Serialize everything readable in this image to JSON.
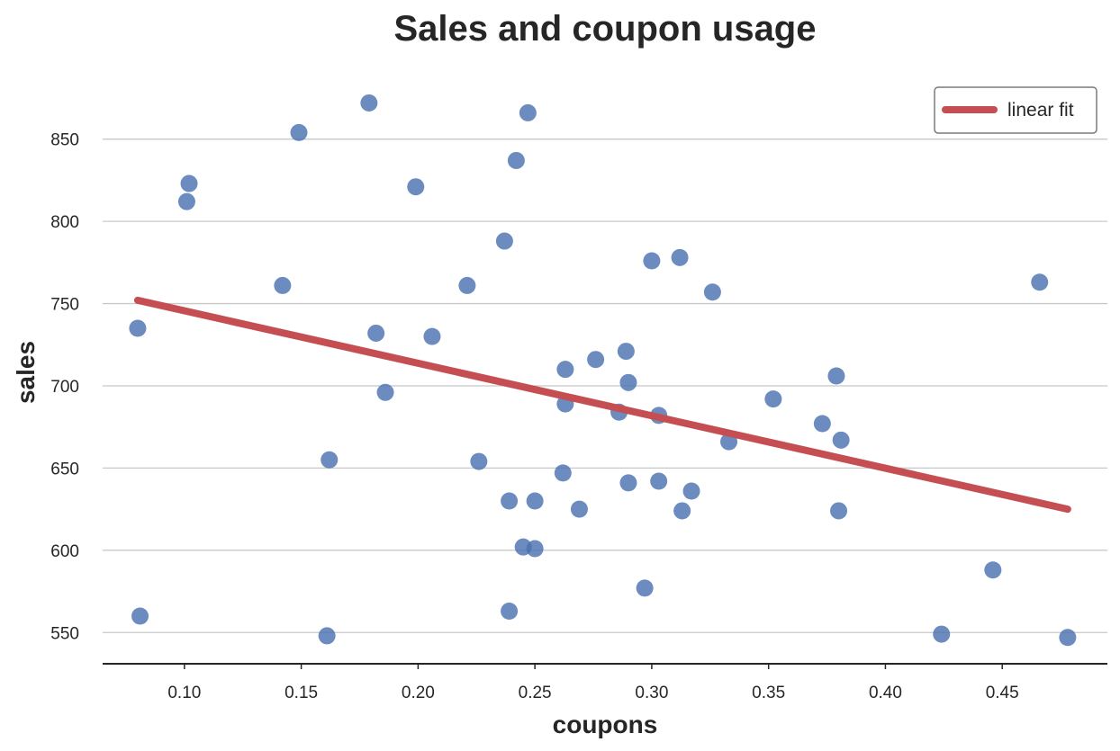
{
  "colors": {
    "background": "#ffffff",
    "points": "#4c72b0",
    "fit_line": "#c44e52",
    "grid": "#c8c8c8",
    "axis": "#262626",
    "text": "#262626"
  },
  "chart_data": {
    "type": "scatter",
    "title": "Sales and coupon usage",
    "xlabel": "coupons",
    "ylabel": "sales",
    "xlim": [
      0.065,
      0.495
    ],
    "ylim": [
      531,
      881
    ],
    "xticks": [
      0.1,
      0.15,
      0.2,
      0.25,
      0.3,
      0.35,
      0.4,
      0.45
    ],
    "xtick_labels": [
      "0.10",
      "0.15",
      "0.20",
      "0.25",
      "0.30",
      "0.35",
      "0.40",
      "0.45"
    ],
    "yticks": [
      550,
      600,
      650,
      700,
      750,
      800,
      850
    ],
    "ytick_labels": [
      "550",
      "600",
      "650",
      "700",
      "750",
      "800",
      "850"
    ],
    "grid": "horizontal",
    "legend": {
      "placement": "top-right",
      "entries": [
        "linear fit"
      ]
    },
    "points": [
      {
        "x": 0.08,
        "y": 735
      },
      {
        "x": 0.081,
        "y": 560
      },
      {
        "x": 0.101,
        "y": 812
      },
      {
        "x": 0.102,
        "y": 823
      },
      {
        "x": 0.142,
        "y": 761
      },
      {
        "x": 0.149,
        "y": 854
      },
      {
        "x": 0.161,
        "y": 548
      },
      {
        "x": 0.162,
        "y": 655
      },
      {
        "x": 0.179,
        "y": 872
      },
      {
        "x": 0.182,
        "y": 732
      },
      {
        "x": 0.186,
        "y": 696
      },
      {
        "x": 0.199,
        "y": 821
      },
      {
        "x": 0.206,
        "y": 730
      },
      {
        "x": 0.221,
        "y": 761
      },
      {
        "x": 0.226,
        "y": 654
      },
      {
        "x": 0.237,
        "y": 788
      },
      {
        "x": 0.239,
        "y": 630
      },
      {
        "x": 0.239,
        "y": 563
      },
      {
        "x": 0.242,
        "y": 837
      },
      {
        "x": 0.245,
        "y": 602
      },
      {
        "x": 0.247,
        "y": 866
      },
      {
        "x": 0.25,
        "y": 630
      },
      {
        "x": 0.25,
        "y": 601
      },
      {
        "x": 0.262,
        "y": 647
      },
      {
        "x": 0.263,
        "y": 710
      },
      {
        "x": 0.263,
        "y": 689
      },
      {
        "x": 0.269,
        "y": 625
      },
      {
        "x": 0.276,
        "y": 716
      },
      {
        "x": 0.286,
        "y": 684
      },
      {
        "x": 0.289,
        "y": 721
      },
      {
        "x": 0.29,
        "y": 702
      },
      {
        "x": 0.29,
        "y": 641
      },
      {
        "x": 0.297,
        "y": 577
      },
      {
        "x": 0.3,
        "y": 776
      },
      {
        "x": 0.303,
        "y": 682
      },
      {
        "x": 0.303,
        "y": 642
      },
      {
        "x": 0.312,
        "y": 778
      },
      {
        "x": 0.313,
        "y": 624
      },
      {
        "x": 0.317,
        "y": 636
      },
      {
        "x": 0.326,
        "y": 757
      },
      {
        "x": 0.333,
        "y": 666
      },
      {
        "x": 0.352,
        "y": 692
      },
      {
        "x": 0.373,
        "y": 677
      },
      {
        "x": 0.379,
        "y": 706
      },
      {
        "x": 0.38,
        "y": 624
      },
      {
        "x": 0.381,
        "y": 667
      },
      {
        "x": 0.424,
        "y": 549
      },
      {
        "x": 0.446,
        "y": 588
      },
      {
        "x": 0.466,
        "y": 763
      },
      {
        "x": 0.478,
        "y": 547
      }
    ],
    "fit_line": {
      "name": "linear fit",
      "x": [
        0.08,
        0.478
      ],
      "y": [
        752,
        625
      ]
    }
  }
}
